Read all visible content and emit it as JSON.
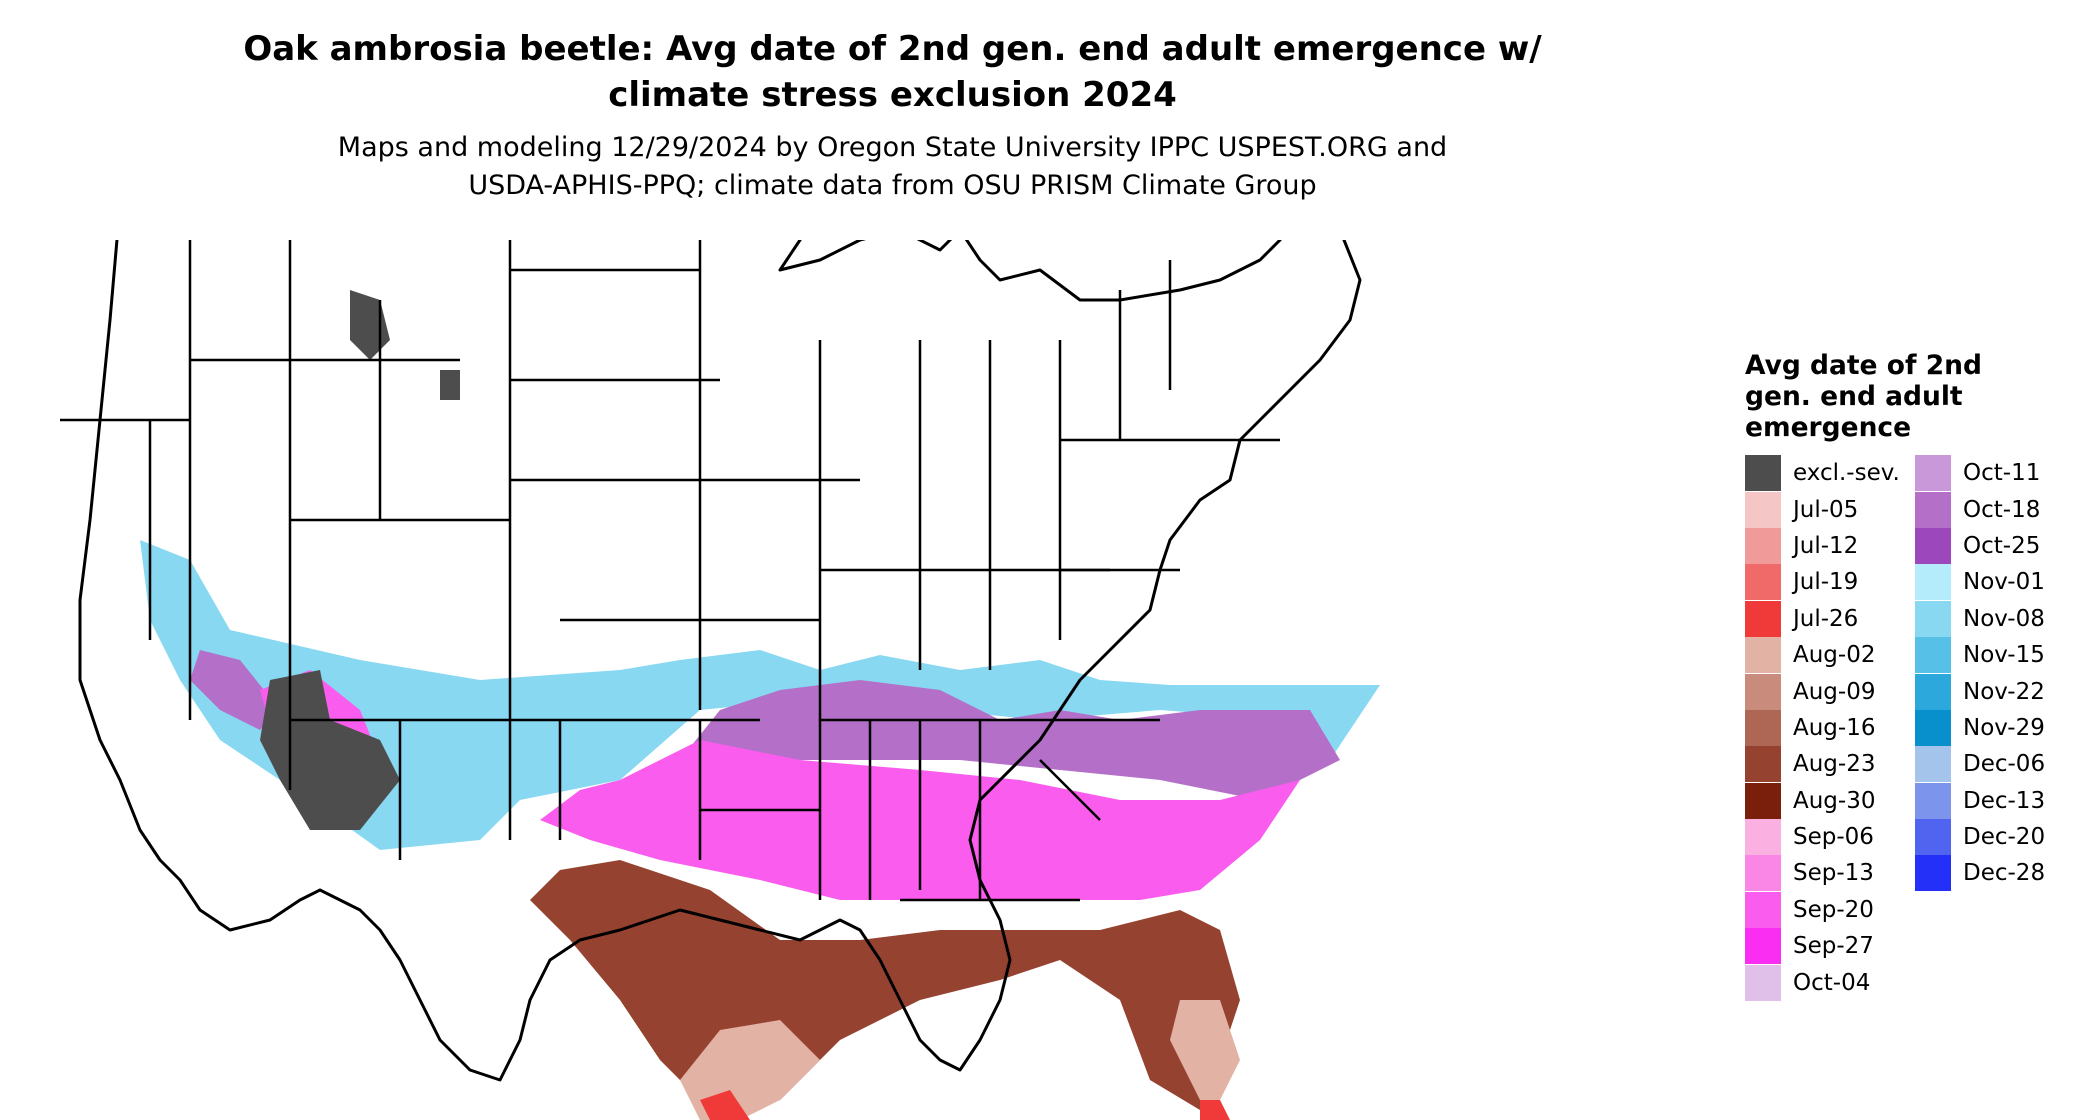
{
  "title": {
    "line1": "Oak ambrosia beetle: Avg date of 2nd gen. end adult emergence w/",
    "line2": "climate stress exclusion 2024"
  },
  "subtitle": {
    "line1": "Maps and modeling 12/29/2024 by Oregon State University IPPC USPEST.ORG and",
    "line2": "USDA-APHIS-PPQ; climate data from OSU PRISM Climate Group"
  },
  "legend": {
    "title_line1": "Avg date of 2nd",
    "title_line2": "gen. end adult",
    "title_line3": "emergence",
    "items": [
      {
        "label": "excl.-sev.",
        "color": "#4d4d4d"
      },
      {
        "label": "Jul-05",
        "color": "#f5c6c6"
      },
      {
        "label": "Jul-12",
        "color": "#f09a9a"
      },
      {
        "label": "Jul-19",
        "color": "#f06a6a"
      },
      {
        "label": "Jul-26",
        "color": "#f03a3a"
      },
      {
        "label": "Aug-02",
        "color": "#e2b2a4"
      },
      {
        "label": "Aug-09",
        "color": "#c98c7c"
      },
      {
        "label": "Aug-16",
        "color": "#ad6754"
      },
      {
        "label": "Aug-23",
        "color": "#964230"
      },
      {
        "label": "Aug-30",
        "color": "#7a1f0c"
      },
      {
        "label": "Sep-06",
        "color": "#fab0e0"
      },
      {
        "label": "Sep-13",
        "color": "#fa86e6"
      },
      {
        "label": "Sep-20",
        "color": "#fa5cee"
      },
      {
        "label": "Sep-27",
        "color": "#fa2ef2"
      },
      {
        "label": "Oct-04",
        "color": "#e0c0e8"
      },
      {
        "label": "Oct-11",
        "color": "#c898d8"
      },
      {
        "label": "Oct-18",
        "color": "#b470c8"
      },
      {
        "label": "Oct-25",
        "color": "#9c48bc"
      },
      {
        "label": "Nov-01",
        "color": "#b4ecfc"
      },
      {
        "label": "Nov-08",
        "color": "#88d8f2"
      },
      {
        "label": "Nov-15",
        "color": "#56c0e6"
      },
      {
        "label": "Nov-22",
        "color": "#2ca8dc"
      },
      {
        "label": "Nov-29",
        "color": "#0890cc"
      },
      {
        "label": "Dec-06",
        "color": "#a4c4ec"
      },
      {
        "label": "Dec-13",
        "color": "#7c94ec"
      },
      {
        "label": "Dec-20",
        "color": "#5064f0"
      },
      {
        "label": "Dec-28",
        "color": "#2430f8"
      }
    ]
  }
}
